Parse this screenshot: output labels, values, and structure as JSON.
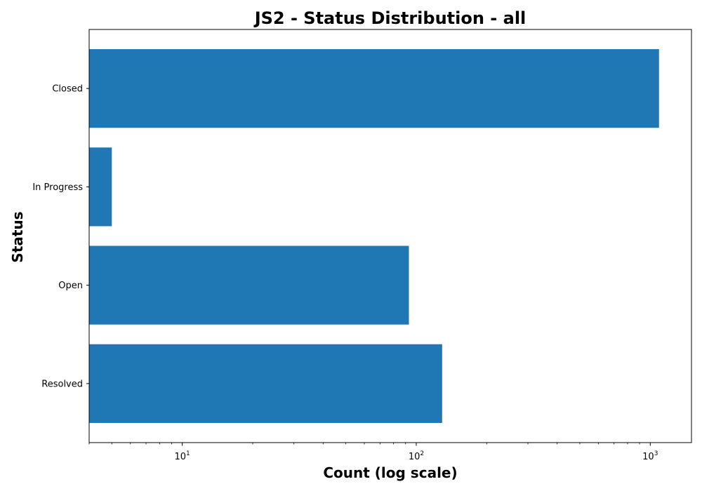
{
  "chart_data": {
    "type": "bar",
    "orientation": "horizontal",
    "title": "JS2 - Status Distribution - all",
    "xlabel": "Count (log scale)",
    "ylabel": "Status",
    "x_scale": "log",
    "xlim": [
      4,
      1500
    ],
    "x_ticks": [
      {
        "base": "10",
        "exp": "1",
        "value": 10
      },
      {
        "base": "10",
        "exp": "2",
        "value": 100
      },
      {
        "base": "10",
        "exp": "3",
        "value": 1000
      }
    ],
    "categories": [
      "Closed",
      "In Progress",
      "Open",
      "Resolved"
    ],
    "values": [
      1090,
      5,
      93,
      129
    ],
    "bar_color": "#1f77b4",
    "grid": false,
    "legend": "none"
  }
}
